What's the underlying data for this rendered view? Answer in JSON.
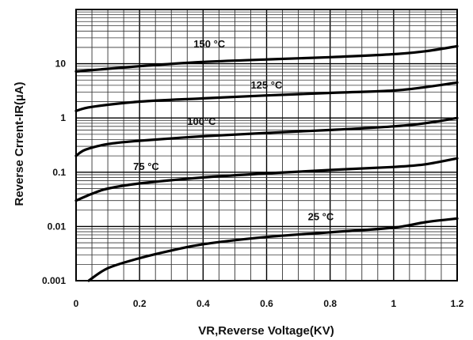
{
  "chart_data": {
    "type": "line",
    "title": "",
    "xlabel": "VR,Reverse Voltage(KV)",
    "ylabel": "Reverse Crrent-IR(µA)",
    "xlim": [
      0,
      1.2
    ],
    "ylim": [
      0.001,
      100
    ],
    "yscale": "log",
    "grid": true,
    "x_ticks": [
      "0",
      "0.2",
      "0.4",
      "0.6",
      "0.8",
      "1",
      "1.2"
    ],
    "y_ticks": [
      "0.001",
      "0.01",
      "0.1",
      "1",
      "10"
    ],
    "series": [
      {
        "name": "150 °C",
        "x": [
          0,
          0.2,
          0.4,
          0.6,
          0.8,
          1.0,
          1.1,
          1.2
        ],
        "y": [
          7.2,
          9.0,
          10.8,
          12.0,
          13.2,
          15.0,
          17.0,
          21.0
        ]
      },
      {
        "name": "125 °C",
        "x": [
          0,
          0.05,
          0.2,
          0.4,
          0.6,
          0.8,
          1.0,
          1.1,
          1.2
        ],
        "y": [
          1.35,
          1.6,
          2.0,
          2.3,
          2.6,
          2.9,
          3.2,
          3.7,
          4.5
        ]
      },
      {
        "name": "100°C",
        "x": [
          0,
          0.03,
          0.1,
          0.2,
          0.4,
          0.6,
          0.8,
          1.0,
          1.1,
          1.2
        ],
        "y": [
          0.2,
          0.26,
          0.33,
          0.38,
          0.46,
          0.53,
          0.6,
          0.7,
          0.8,
          1.0
        ]
      },
      {
        "name": "75 °C",
        "x": [
          0,
          0.05,
          0.1,
          0.2,
          0.4,
          0.6,
          0.8,
          1.0,
          1.1,
          1.2
        ],
        "y": [
          0.03,
          0.04,
          0.05,
          0.062,
          0.08,
          0.095,
          0.11,
          0.125,
          0.14,
          0.18
        ]
      },
      {
        "name": "25 °C",
        "x": [
          0.04,
          0.1,
          0.2,
          0.3,
          0.4,
          0.6,
          0.8,
          1.0,
          1.1,
          1.2
        ],
        "y": [
          0.001,
          0.0017,
          0.0026,
          0.0036,
          0.0047,
          0.0064,
          0.0078,
          0.0095,
          0.012,
          0.014
        ]
      }
    ]
  }
}
